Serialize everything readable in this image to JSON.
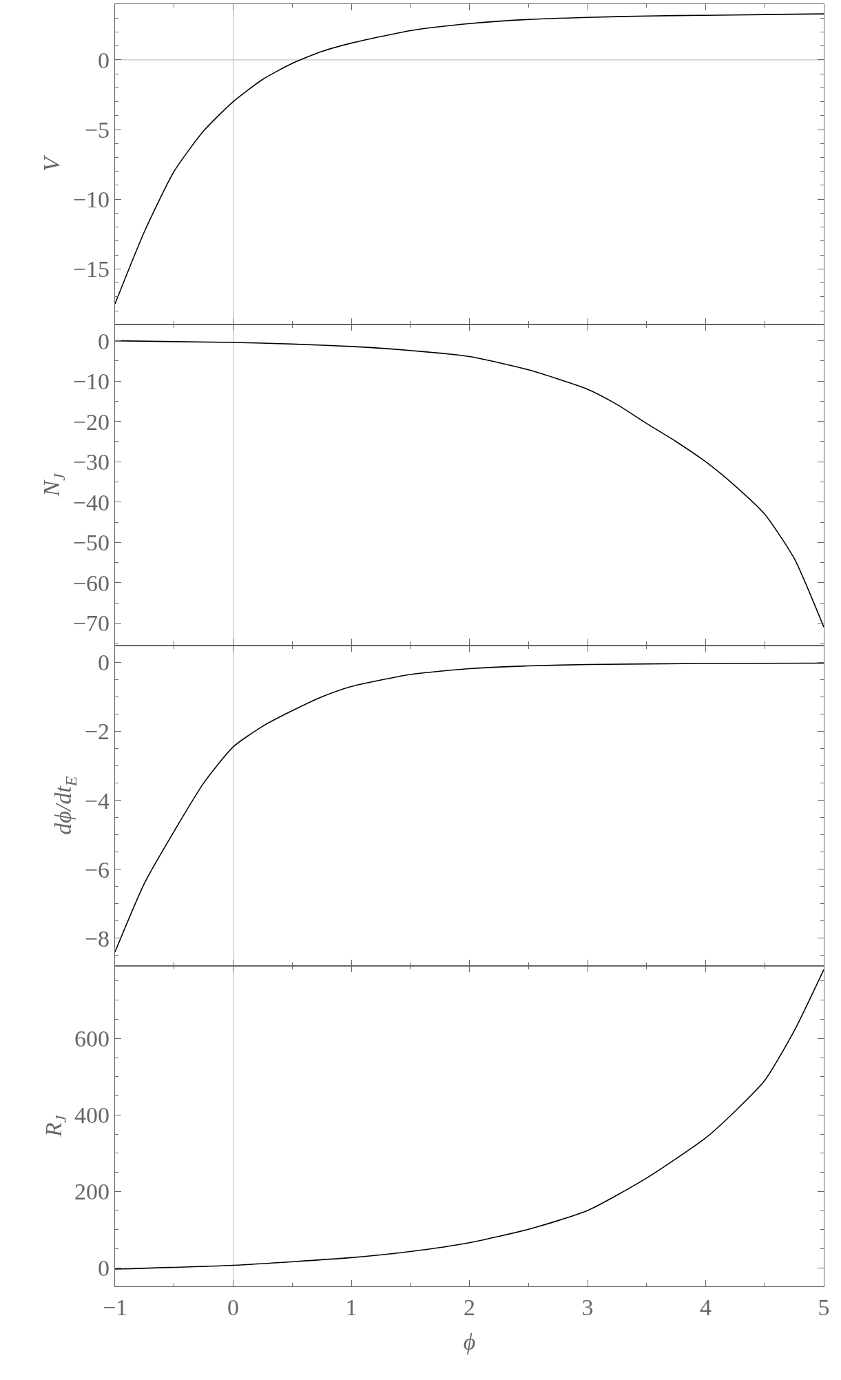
{
  "chart_data": [
    {
      "type": "line",
      "ylabel": "V",
      "color": "#000000",
      "xlim": [
        -1,
        5
      ],
      "xticks": [
        -1,
        0,
        1,
        2,
        3,
        4,
        5
      ],
      "ylim": [
        -19,
        4
      ],
      "yticks": [
        -15,
        -10,
        -5,
        0
      ],
      "tick_labels": "y",
      "grid": false,
      "ref_lines": [
        {
          "axis": "x",
          "value": 0,
          "color": "#b3b3b3"
        },
        {
          "axis": "y",
          "value": 0,
          "color": "#b3b3b3"
        }
      ],
      "x": [
        -1,
        -0.75,
        -0.5,
        -0.25,
        0,
        0.25,
        0.5,
        0.75,
        1,
        1.5,
        2,
        2.5,
        3,
        3.5,
        4,
        4.5,
        5
      ],
      "values": [
        -17.5,
        -12.3,
        -8.0,
        -5.1,
        -3.0,
        -1.4,
        -0.25,
        0.6,
        1.2,
        2.1,
        2.6,
        2.9,
        3.05,
        3.15,
        3.2,
        3.25,
        3.3
      ]
    },
    {
      "type": "line",
      "ylabel": "N$_{J}$",
      "color": "#000000",
      "xlim": [
        -1,
        5
      ],
      "xticks": [
        -1,
        0,
        1,
        2,
        3,
        4,
        5
      ],
      "ylim": [
        -75.5,
        4
      ],
      "yticks": [
        -70,
        -60,
        -50,
        -40,
        -30,
        -20,
        -10,
        0
      ],
      "tick_labels": "y",
      "grid": false,
      "ref_lines": [
        {
          "axis": "x",
          "value": 0,
          "color": "#b3b3b3"
        }
      ],
      "x": [
        -1,
        0,
        0.5,
        1,
        1.5,
        2,
        2.5,
        3,
        3.25,
        3.5,
        3.75,
        4,
        4.25,
        4.5,
        4.75,
        5
      ],
      "values": [
        0,
        -0.4,
        -0.8,
        -1.4,
        -2.4,
        -3.9,
        -7.2,
        -12,
        -15.8,
        -20.5,
        -25,
        -30,
        -36,
        -43,
        -54,
        -71
      ]
    },
    {
      "type": "line",
      "ylabel": "dϕ/dt$_{E}$",
      "color": "#000000",
      "xlim": [
        -1,
        5
      ],
      "xticks": [
        -1,
        0,
        1,
        2,
        3,
        4,
        5
      ],
      "ylim": [
        -8.8,
        0.5
      ],
      "yticks": [
        -8,
        -6,
        -4,
        -2,
        0
      ],
      "tick_labels": "y",
      "grid": false,
      "ref_lines": [
        {
          "axis": "x",
          "value": 0,
          "color": "#b3b3b3"
        }
      ],
      "x": [
        -1,
        -0.75,
        -0.5,
        -0.25,
        0,
        0.25,
        0.5,
        0.75,
        1,
        1.5,
        2,
        2.5,
        3,
        4,
        5
      ],
      "values": [
        -8.4,
        -6.4,
        -4.9,
        -3.5,
        -2.45,
        -1.85,
        -1.4,
        -1.0,
        -0.7,
        -0.35,
        -0.18,
        -0.1,
        -0.06,
        -0.03,
        -0.02
      ]
    },
    {
      "type": "line",
      "ylabel": "R$_{J}$",
      "xlabel": "ϕ",
      "color": "#000000",
      "xlim": [
        -1,
        5
      ],
      "xticks": [
        -1,
        0,
        1,
        2,
        3,
        4,
        5
      ],
      "ylim": [
        -48,
        790
      ],
      "yticks": [
        0,
        200,
        400,
        600
      ],
      "grid": false,
      "ref_lines": [
        {
          "axis": "x",
          "value": 0,
          "color": "#b3b3b3"
        }
      ],
      "x": [
        -1,
        0,
        1,
        1.5,
        2,
        2.5,
        3,
        3.5,
        4,
        4.25,
        4.5,
        4.75,
        5
      ],
      "values": [
        -3,
        7,
        27,
        43,
        66,
        101,
        150,
        235,
        340,
        410,
        490,
        620,
        780
      ]
    }
  ]
}
